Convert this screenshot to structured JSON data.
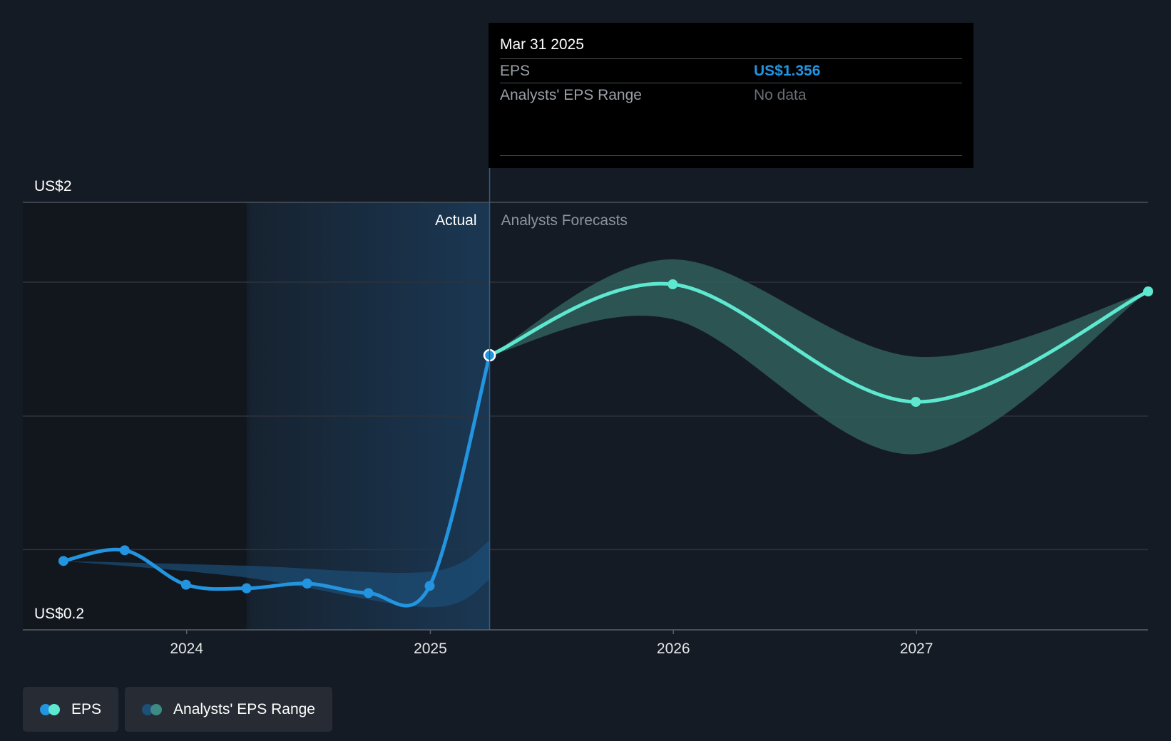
{
  "colors": {
    "background": "#151b24",
    "actual_line": "#2394df",
    "forecast_line": "#5ee8d0",
    "forecast_band": "#2f5b59",
    "actual_band": "#1d4f78",
    "gridline": "#2c333c"
  },
  "tooltip": {
    "date": "Mar 31 2025",
    "eps_label": "EPS",
    "eps_value": "US$1.356",
    "range_label": "Analysts' EPS Range",
    "range_value": "No data"
  },
  "legend": {
    "eps_label": "EPS",
    "range_label": "Analysts' EPS Range"
  },
  "chart_data": {
    "type": "line",
    "y_axis_labels": {
      "top": "US$2",
      "bottom": "US$0.2"
    },
    "ylim": [
      0.2,
      2.0
    ],
    "xlim": [
      "2023-04-30",
      "2027-12-15"
    ],
    "x_ticks": [
      "2024",
      "2025",
      "2026",
      "2027"
    ],
    "divider_date": "2025-03-31",
    "period_labels": {
      "actual": "Actual",
      "forecast": "Analysts Forecasts"
    },
    "gridlines_y": [
      0.538,
      1.1,
      1.664
    ],
    "series": [
      {
        "name": "EPS",
        "kind": "actual",
        "points": [
          [
            "2023-06-30",
            0.49
          ],
          [
            "2023-09-30",
            0.535
          ],
          [
            "2023-12-31",
            0.39
          ],
          [
            "2024-03-31",
            0.375
          ],
          [
            "2024-06-30",
            0.395
          ],
          [
            "2024-09-30",
            0.355
          ],
          [
            "2024-12-31",
            0.385
          ],
          [
            "2025-03-31",
            1.356
          ]
        ]
      },
      {
        "name": "EPS",
        "kind": "forecast",
        "points": [
          [
            "2025-03-31",
            1.356
          ],
          [
            "2025-12-31",
            1.655
          ],
          [
            "2026-12-31",
            1.16
          ],
          [
            "2027-12-15",
            1.625
          ]
        ]
      },
      {
        "name": "Analysts' EPS Range",
        "kind": "forecast_range",
        "x": [
          "2025-03-31",
          "2025-12-31",
          "2026-12-31",
          "2027-12-15"
        ],
        "low": [
          1.356,
          1.508,
          0.94,
          1.625
        ],
        "high": [
          1.356,
          1.76,
          1.35,
          1.625
        ]
      },
      {
        "name": "Analysts' EPS Range",
        "kind": "actual_range",
        "x": [
          "2023-06-30",
          "2024-03-31",
          "2024-12-31",
          "2025-03-31"
        ],
        "low": [
          0.49,
          0.42,
          0.295,
          0.41
        ],
        "high": [
          0.49,
          0.47,
          0.445,
          0.575
        ]
      }
    ]
  }
}
